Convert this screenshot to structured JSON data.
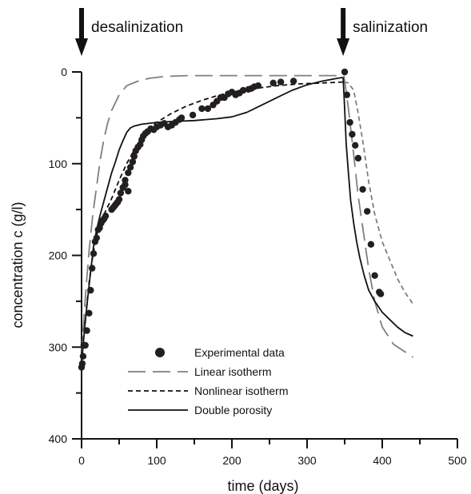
{
  "chart_data": {
    "type": "scatter",
    "title": "",
    "xlabel": "time (days)",
    "ylabel": "concentration c (g/l)",
    "xlim": [
      0,
      500
    ],
    "ylim": [
      400,
      0
    ],
    "y_inverted": true,
    "x_ticks": [
      0,
      100,
      200,
      300,
      400,
      500
    ],
    "y_ticks": [
      0,
      100,
      200,
      300,
      400
    ],
    "grid": false,
    "legend_position": "bottom-left",
    "annotations": [
      {
        "text": "desalinization",
        "x": 0
      },
      {
        "text": "salinization",
        "x": 348
      }
    ],
    "series": [
      {
        "name": "Experimental data",
        "kind": "points",
        "color": "#231f20",
        "x": [
          0,
          1,
          2,
          3,
          5,
          7,
          10,
          12,
          14,
          16,
          18,
          20,
          22,
          24,
          26,
          28,
          30,
          32,
          40,
          42,
          44,
          46,
          48,
          50,
          52,
          55,
          58,
          62,
          58,
          62,
          65,
          68,
          70,
          72,
          75,
          78,
          80,
          82,
          85,
          88,
          92,
          96,
          100,
          105,
          110,
          115,
          120,
          125,
          130,
          133,
          148,
          160,
          168,
          175,
          180,
          185,
          190,
          195,
          200,
          205,
          210,
          215,
          222,
          226,
          230,
          235,
          255,
          265,
          282,
          350,
          353,
          357,
          360,
          364,
          368,
          374,
          380,
          385,
          390,
          396,
          398
        ],
        "y": [
          322,
          318,
          310,
          298,
          298,
          282,
          263,
          238,
          214,
          198,
          185,
          181,
          172,
          170,
          165,
          162,
          160,
          157,
          150,
          148,
          146,
          144,
          142,
          139,
          132,
          126,
          123,
          130,
          118,
          110,
          104,
          98,
          92,
          86,
          82,
          79,
          74,
          70,
          67,
          65,
          62,
          63,
          60,
          58,
          56,
          60,
          58,
          55,
          52,
          50,
          47,
          40,
          40,
          36,
          32,
          28,
          28,
          24,
          22,
          25,
          23,
          20,
          19,
          18,
          16,
          15,
          12,
          11,
          10,
          0,
          25,
          55,
          68,
          80,
          94,
          128,
          152,
          188,
          222,
          240,
          242
        ]
      },
      {
        "name": "Linear isotherm",
        "kind": "line",
        "style": "long-dash",
        "color": "#7f7f7f",
        "segments": [
          {
            "x": [
              0,
              3,
              6,
              10,
              15,
              20,
              25,
              30,
              35,
              40,
              50,
              60,
              75,
              90,
              110,
              140,
              180,
              250,
              300,
              349
            ],
            "y": [
              310,
              270,
              235,
              195,
              155,
              125,
              95,
              72,
              55,
              42,
              25,
              15,
              10,
              7,
              5,
              4,
              4,
              4,
              4,
              4
            ]
          },
          {
            "x": [
              349,
              355,
              362,
              368,
              375,
              382,
              390,
              400,
              415,
              430,
              441
            ],
            "y": [
              4,
              40,
              90,
              135,
              175,
              215,
              250,
              278,
              297,
              305,
              311
            ]
          }
        ]
      },
      {
        "name": "Nonlinear isotherm",
        "kind": "line",
        "style": "short-dash",
        "color": "#111111",
        "segments": [
          {
            "x": [
              0,
              5,
              10,
              15,
              20,
              25,
              30,
              40,
              50,
              60,
              70,
              80,
              90,
              100,
              120,
              140,
              160,
              180,
              200,
              230,
              260,
              290,
              320,
              349
            ],
            "y": [
              310,
              270,
              230,
              200,
              178,
              164,
              155,
              138,
              118,
              100,
              85,
              73,
              62,
              55,
              45,
              37,
              31,
              26,
              22,
              18,
              15,
              13,
              12,
              11
            ]
          }
        ]
      },
      {
        "name": "Nonlinear isotherm (salinization)",
        "kind": "line",
        "style": "short-dash",
        "color": "#7f7f7f",
        "in_legend": false,
        "segments": [
          {
            "x": [
              349,
              355,
              362,
              368,
              375,
              382,
              390,
              400,
              410,
              420,
              430,
              441
            ],
            "y": [
              11,
              12,
              20,
              45,
              80,
              120,
              155,
              185,
              205,
              225,
              240,
              253
            ]
          }
        ]
      },
      {
        "name": "Double porosity",
        "kind": "line",
        "style": "solid",
        "color": "#111111",
        "segments": [
          {
            "x": [
              0,
              4,
              8,
              12,
              16,
              20,
              25,
              30,
              35,
              40,
              45,
              50,
              55,
              60,
              65,
              70,
              80,
              100,
              120,
              150,
              180,
              200,
              220,
              240,
              260,
              280,
              300,
              320,
              340,
              348
            ],
            "y": [
              318,
              280,
              248,
              218,
              190,
              172,
              155,
              140,
              125,
              110,
              98,
              85,
              75,
              66,
              61,
              59,
              57,
              55,
              54,
              53,
              51,
              49,
              44,
              36,
              28,
              20,
              14,
              10,
              7,
              6
            ]
          },
          {
            "x": [
              348,
              350,
              352,
              355,
              358,
              362,
              366,
              370,
              376,
              382,
              390,
              400,
              410,
              420,
              430,
              441
            ],
            "y": [
              6,
              40,
              78,
              110,
              140,
              165,
              185,
              202,
              222,
              238,
              250,
              262,
              270,
              278,
              284,
              288
            ]
          }
        ]
      }
    ]
  },
  "legend": {
    "items": [
      {
        "label": "Experimental data",
        "marker": "circle"
      },
      {
        "label": "Linear isotherm",
        "marker": "long-dash"
      },
      {
        "label": "Nonlinear isotherm",
        "marker": "short-dash"
      },
      {
        "label": "Double porosity",
        "marker": "solid"
      }
    ]
  }
}
